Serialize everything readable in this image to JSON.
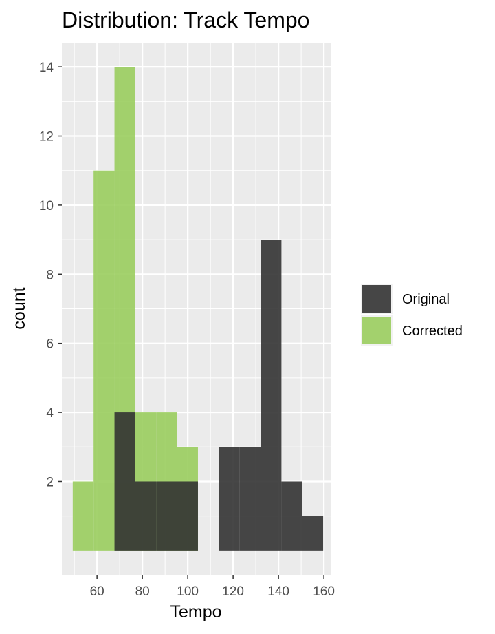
{
  "chart_data": {
    "type": "histogram",
    "title": "Distribution: Track Tempo",
    "xlabel": "Tempo",
    "ylabel": "count",
    "xlim": [
      44.5,
      163
    ],
    "ylim": [
      -0.7,
      14.7
    ],
    "xticks": [
      60,
      80,
      100,
      120,
      140,
      160
    ],
    "yticks": [
      2,
      4,
      6,
      8,
      10,
      12,
      14
    ],
    "grid": true,
    "legend_position": "right",
    "series": [
      {
        "name": "Corrected",
        "color": "#9ACD5E",
        "bins": [
          {
            "x0": 49.3,
            "x1": 58.5,
            "count": 2
          },
          {
            "x0": 58.5,
            "x1": 67.7,
            "count": 11
          },
          {
            "x0": 67.7,
            "x1": 76.9,
            "count": 14
          },
          {
            "x0": 76.9,
            "x1": 86.1,
            "count": 4
          },
          {
            "x0": 86.1,
            "x1": 95.3,
            "count": 4
          },
          {
            "x0": 95.3,
            "x1": 104.5,
            "count": 3
          }
        ]
      },
      {
        "name": "Original",
        "color": "#333333",
        "bins": [
          {
            "x0": 67.7,
            "x1": 76.9,
            "count": 4
          },
          {
            "x0": 76.9,
            "x1": 86.1,
            "count": 2
          },
          {
            "x0": 86.1,
            "x1": 95.3,
            "count": 2
          },
          {
            "x0": 95.3,
            "x1": 104.5,
            "count": 2
          },
          {
            "x0": 113.7,
            "x1": 122.9,
            "count": 3
          },
          {
            "x0": 122.9,
            "x1": 132.1,
            "count": 3
          },
          {
            "x0": 132.1,
            "x1": 141.3,
            "count": 9
          },
          {
            "x0": 141.3,
            "x1": 150.5,
            "count": 2
          },
          {
            "x0": 150.5,
            "x1": 159.7,
            "count": 1
          }
        ]
      }
    ],
    "legend": [
      {
        "label": "Original",
        "color": "#333333"
      },
      {
        "label": "Corrected",
        "color": "#9ACD5E"
      }
    ]
  }
}
